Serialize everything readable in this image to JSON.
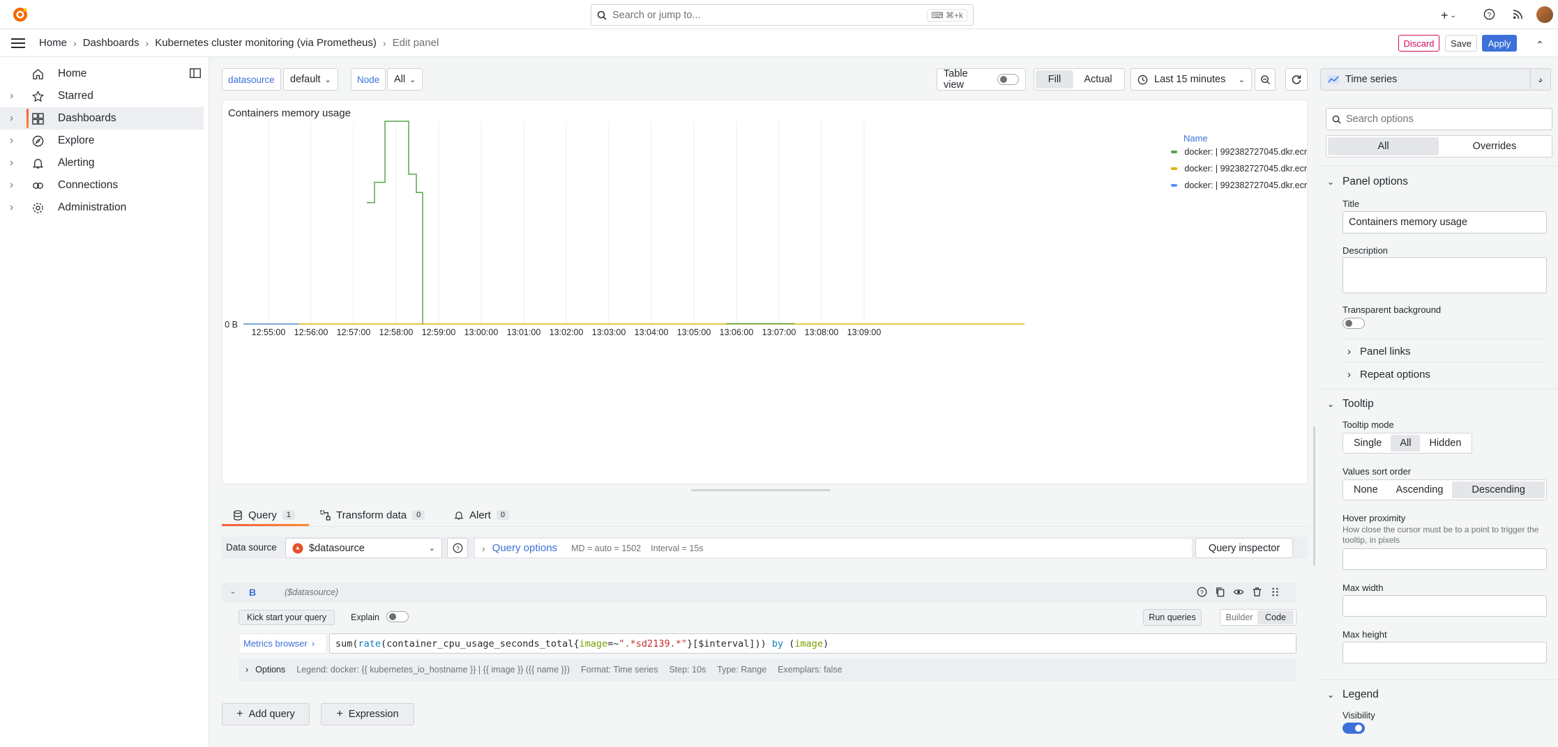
{
  "topbar": {
    "search_placeholder": "Search or jump to...",
    "search_shortcut": "⌘+k"
  },
  "breadcrumb": {
    "items": [
      "Home",
      "Dashboards",
      "Kubernetes cluster monitoring (via Prometheus)",
      "Edit panel"
    ],
    "discard_label": "Discard",
    "save_label": "Save",
    "apply_label": "Apply"
  },
  "sidebar": {
    "items": [
      {
        "label": "Home",
        "icon": "home-icon"
      },
      {
        "label": "Starred",
        "icon": "star-icon"
      },
      {
        "label": "Dashboards",
        "icon": "dashboards-icon"
      },
      {
        "label": "Explore",
        "icon": "compass-icon"
      },
      {
        "label": "Alerting",
        "icon": "bell-icon"
      },
      {
        "label": "Connections",
        "icon": "link-icon"
      },
      {
        "label": "Administration",
        "icon": "gear-icon"
      }
    ]
  },
  "variables": {
    "datasource_label": "datasource",
    "datasource_value": "default",
    "node_label": "Node",
    "node_value": "All"
  },
  "toolbar": {
    "table_view_label": "Table view",
    "fill_label": "Fill",
    "actual_label": "Actual",
    "time_range": "Last 15 minutes"
  },
  "chart_data": {
    "type": "line",
    "title": "Containers memory usage",
    "x_ticks": [
      "12:55:00",
      "12:56:00",
      "12:57:00",
      "12:58:00",
      "12:59:00",
      "13:00:00",
      "13:01:00",
      "13:02:00",
      "13:03:00",
      "13:04:00",
      "13:05:00",
      "13:06:00",
      "13:07:00",
      "13:08:00",
      "13:09:00"
    ],
    "y_ticks": [
      "0 B"
    ],
    "legend_header": "Name",
    "series": [
      {
        "name": "docker: | 992382727045.dkr.ecr",
        "color": "#56a64b",
        "values_relative": [
          0,
          0,
          0,
          0.6,
          0.7,
          1,
          1,
          0.74,
          0.65,
          0,
          0,
          0,
          0,
          0,
          0,
          0
        ]
      },
      {
        "name": "docker: | 992382727045.dkr.ecr",
        "color": "#e0b400",
        "values_relative": [
          0,
          0,
          0,
          0,
          0,
          0,
          0,
          0,
          0,
          0,
          0,
          0,
          0,
          0,
          0,
          0
        ]
      },
      {
        "name": "docker: | 992382727045.dkr.ecr",
        "color": "#5794f2",
        "values_relative": [
          0,
          0,
          0,
          0,
          0,
          0,
          0,
          0,
          0,
          0,
          0,
          0,
          0,
          0,
          0,
          0
        ]
      }
    ]
  },
  "query_tabs": [
    {
      "label": "Query",
      "count": "1"
    },
    {
      "label": "Transform data",
      "count": "0"
    },
    {
      "label": "Alert",
      "count": "0"
    }
  ],
  "query": {
    "data_source_label": "Data source",
    "data_source_value": "$datasource",
    "query_options_label": "Query options",
    "md_info": "MD = auto = 1502",
    "interval_info": "Interval = 15s",
    "inspector_label": "Query inspector",
    "ref_id": "B",
    "ref_source": "($datasource)",
    "kick_start_label": "Kick start your query",
    "explain_label": "Explain",
    "run_queries_label": "Run queries",
    "builder_label": "Builder",
    "code_label": "Code",
    "metrics_browser_label": "Metrics browser",
    "expr_parts": {
      "p1": "sum(",
      "p2": "rate",
      "p3": "(container_cpu_usage_seconds_total{",
      "p4": "image",
      "p5": "=~",
      "p6": "\".*sd2139.*\"",
      "p7": "}[$interval])) ",
      "p8": "by",
      "p9": " (",
      "p10": "image",
      "p11": ")"
    },
    "options_label": "Options",
    "legend_info": "Legend: docker: {{ kubernetes_io_hostname }} | {{ image }} ({{ name }})",
    "format_info": "Format: Time series",
    "step_info": "Step: 10s",
    "type_info": "Type: Range",
    "exemplars_info": "Exemplars: false",
    "add_query_label": "Add query",
    "expression_label": "Expression"
  },
  "options_pane": {
    "viz_name": "Time series",
    "search_placeholder": "Search options",
    "all_label": "All",
    "overrides_label": "Overrides",
    "panel_options_header": "Panel options",
    "title_label": "Title",
    "title_value": "Containers memory usage",
    "description_label": "Description",
    "transparent_label": "Transparent background",
    "panel_links_label": "Panel links",
    "repeat_options_label": "Repeat options",
    "tooltip_header": "Tooltip",
    "tooltip_mode_label": "Tooltip mode",
    "tooltip_modes": [
      "Single",
      "All",
      "Hidden"
    ],
    "sort_order_label": "Values sort order",
    "sort_orders": [
      "None",
      "Ascending",
      "Descending"
    ],
    "hover_label": "Hover proximity",
    "hover_desc": "How close the cursor must be to a point to trigger the tooltip, in pixels",
    "max_width_label": "Max width",
    "max_height_label": "Max height",
    "legend_header": "Legend",
    "visibility_label": "Visibility"
  }
}
